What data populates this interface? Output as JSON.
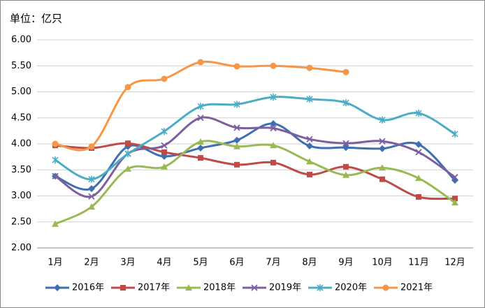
{
  "chart_data": {
    "type": "line",
    "title": "单位：亿只",
    "categories": [
      "1月",
      "2月",
      "3月",
      "4月",
      "5月",
      "6月",
      "7月",
      "8月",
      "9月",
      "10月",
      "11月",
      "12月"
    ],
    "ylim": [
      2,
      6
    ],
    "yticks": [
      {
        "value": 2,
        "label": "2.00"
      },
      {
        "value": 2.5,
        "label": "2.50"
      },
      {
        "value": 3,
        "label": "3.00"
      },
      {
        "value": 3.5,
        "label": "3.50"
      },
      {
        "value": 4,
        "label": "4.00"
      },
      {
        "value": 4.5,
        "label": "4.50"
      },
      {
        "value": 5,
        "label": "5.00"
      },
      {
        "value": 5.5,
        "label": "5.50"
      },
      {
        "value": 6,
        "label": "6.00"
      }
    ],
    "grid": true,
    "smooth": true,
    "legend": "bottom",
    "series": [
      {
        "name": "2016年",
        "color": "#3f6fb0",
        "marker": "diamond",
        "values": [
          3.38,
          3.14,
          3.95,
          3.76,
          3.92,
          4.07,
          4.39,
          3.96,
          3.93,
          3.91,
          3.99,
          3.3
        ]
      },
      {
        "name": "2017年",
        "color": "#be4b48",
        "marker": "square",
        "values": [
          3.97,
          3.92,
          4.01,
          3.84,
          3.73,
          3.6,
          3.64,
          3.41,
          3.56,
          3.32,
          2.98,
          2.95
        ]
      },
      {
        "name": "2018年",
        "color": "#98b954",
        "marker": "triangle",
        "values": [
          2.46,
          2.79,
          3.52,
          3.56,
          4.04,
          3.95,
          3.97,
          3.66,
          3.4,
          3.54,
          3.34,
          2.87
        ]
      },
      {
        "name": "2019年",
        "color": "#7d5fa0",
        "marker": "x",
        "values": [
          3.38,
          2.99,
          3.81,
          3.97,
          4.5,
          4.31,
          4.3,
          4.09,
          4.01,
          4.05,
          3.84,
          3.36
        ]
      },
      {
        "name": "2020年",
        "color": "#4bacc6",
        "marker": "star",
        "values": [
          3.69,
          3.32,
          3.81,
          4.24,
          4.72,
          4.76,
          4.9,
          4.86,
          4.79,
          4.46,
          4.59,
          4.19
        ]
      },
      {
        "name": "2021年",
        "color": "#f79646",
        "marker": "circle",
        "values": [
          4.0,
          3.95,
          5.09,
          5.25,
          5.57,
          5.49,
          5.5,
          5.46,
          5.38,
          null,
          null,
          null
        ]
      }
    ]
  }
}
